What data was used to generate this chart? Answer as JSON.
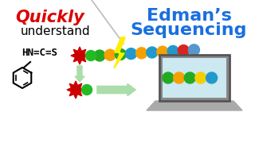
{
  "title_left_bold": "Quickly",
  "title_left_normal": "understand",
  "title_right_line1": "Edman’s",
  "title_right_line2": "Sequencing",
  "title_left_bold_color": "#dd0000",
  "title_right_color": "#1a6fe0",
  "bg_color": "#ffffff",
  "chain_colors": [
    "#22aa22",
    "#f5a000",
    "#22aa22",
    "#2299cc",
    "#f5a000",
    "#2299cc",
    "#f5a000",
    "#2299cc",
    "#dd2222",
    "#5599cc"
  ],
  "screen_colors": [
    "#22aa22",
    "#f5a000",
    "#22aa22",
    "#f5d000",
    "#2299cc"
  ],
  "star_color": "#cc0000",
  "green_dot_color": "#22bb22",
  "lightning_color": "#ffee00",
  "lightning_outline": "#aaaa00",
  "arrow_color": "#aaddaa",
  "arrow_outline": "#88aa88",
  "chem_text": "HN=C=S",
  "diag_line_color": "#bbbbbb",
  "screen_bg": "#cce8f0",
  "screen_border": "#555555",
  "screen_outer": "#888888",
  "laptop_base_color": "#aaaaaa"
}
